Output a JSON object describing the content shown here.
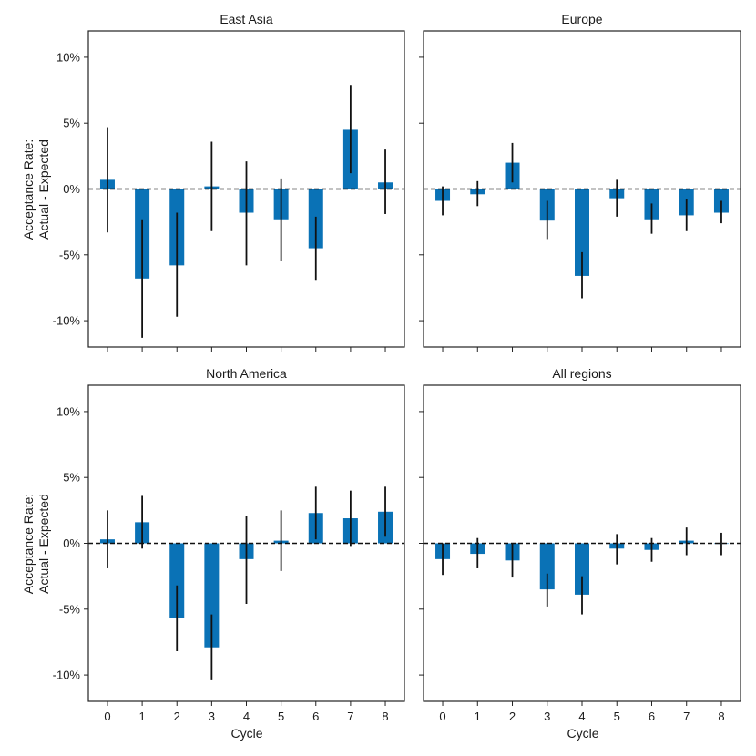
{
  "figure": {
    "xlabel": "Cycle",
    "ylabel_line1": "Acceptance Rate:",
    "ylabel_line2": "Actual - Expected"
  },
  "colors": {
    "bar": "#0a72b6",
    "error": "#111111",
    "zero_line": "#111111",
    "axes": "#222222"
  },
  "chart_data": [
    {
      "type": "bar",
      "title": "East Asia",
      "categories": [
        "0",
        "1",
        "2",
        "3",
        "4",
        "5",
        "6",
        "7",
        "8"
      ],
      "values": [
        0.7,
        -6.8,
        -5.8,
        0.2,
        -1.8,
        -2.3,
        -4.5,
        4.5,
        0.5
      ],
      "error_low": [
        -3.3,
        -11.3,
        -9.7,
        -3.2,
        -5.8,
        -5.5,
        -6.9,
        1.2,
        -1.9
      ],
      "error_high": [
        4.7,
        -2.3,
        -1.8,
        3.6,
        2.1,
        0.8,
        -2.1,
        7.9,
        3.0
      ],
      "ylim": [
        -12,
        12
      ],
      "yticks": [
        -10,
        -5,
        0,
        5,
        10
      ],
      "ytick_labels": [
        "-10%",
        "-5%",
        "0%",
        "5%",
        "10%"
      ],
      "reference_line": 0
    },
    {
      "type": "bar",
      "title": "Europe",
      "categories": [
        "0",
        "1",
        "2",
        "3",
        "4",
        "5",
        "6",
        "7",
        "8"
      ],
      "values": [
        -0.9,
        -0.4,
        2.0,
        -2.4,
        -6.6,
        -0.7,
        -2.3,
        -2.0,
        -1.8
      ],
      "error_low": [
        -2.0,
        -1.3,
        0.5,
        -3.8,
        -8.3,
        -2.1,
        -3.4,
        -3.2,
        -2.6
      ],
      "error_high": [
        0.2,
        0.6,
        3.5,
        -0.9,
        -4.8,
        0.7,
        -1.1,
        -0.8,
        -0.9
      ],
      "ylim": [
        -12,
        12
      ],
      "yticks": [
        -10,
        -5,
        0,
        5,
        10
      ],
      "ytick_labels": [
        "-10%",
        "-5%",
        "0%",
        "5%",
        "10%"
      ],
      "reference_line": 0
    },
    {
      "type": "bar",
      "title": "North America",
      "categories": [
        "0",
        "1",
        "2",
        "3",
        "4",
        "5",
        "6",
        "7",
        "8"
      ],
      "values": [
        0.3,
        1.6,
        -5.7,
        -7.9,
        -1.2,
        0.2,
        2.3,
        1.9,
        2.4
      ],
      "error_low": [
        -1.9,
        -0.4,
        -8.2,
        -10.4,
        -4.6,
        -2.1,
        0.3,
        -0.2,
        0.5
      ],
      "error_high": [
        2.5,
        3.6,
        -3.2,
        -5.4,
        2.1,
        2.5,
        4.3,
        4.0,
        4.3
      ],
      "ylim": [
        -12,
        12
      ],
      "yticks": [
        -10,
        -5,
        0,
        5,
        10
      ],
      "ytick_labels": [
        "-10%",
        "-5%",
        "0%",
        "5%",
        "10%"
      ],
      "reference_line": 0
    },
    {
      "type": "bar",
      "title": "All regions",
      "categories": [
        "0",
        "1",
        "2",
        "3",
        "4",
        "5",
        "6",
        "7",
        "8"
      ],
      "values": [
        -1.2,
        -0.8,
        -1.3,
        -3.5,
        -3.9,
        -0.4,
        -0.5,
        0.2,
        0.0
      ],
      "error_low": [
        -2.4,
        -1.9,
        -2.6,
        -4.8,
        -5.4,
        -1.6,
        -1.4,
        -0.9,
        -0.9
      ],
      "error_high": [
        0.0,
        0.4,
        0.0,
        -2.3,
        -2.5,
        0.7,
        0.4,
        1.2,
        0.8
      ],
      "ylim": [
        -12,
        12
      ],
      "yticks": [
        -10,
        -5,
        0,
        5,
        10
      ],
      "ytick_labels": [
        "-10%",
        "-5%",
        "0%",
        "5%",
        "10%"
      ],
      "reference_line": 0
    }
  ]
}
